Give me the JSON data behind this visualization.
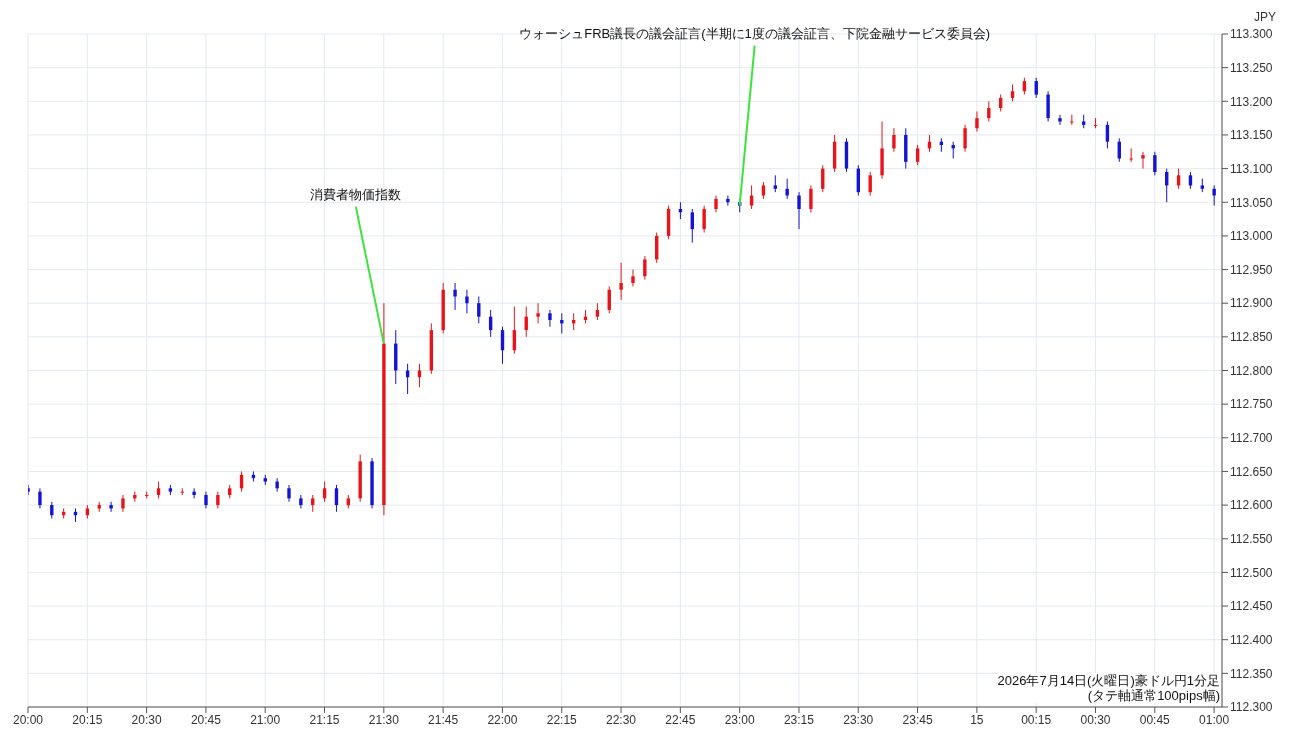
{
  "chart_data": {
    "type": "candlestick",
    "ylabel": "JPY",
    "annotations": [
      {
        "text": "消費者物価指数",
        "x": "2026-07-14T21:30",
        "y": 112.84
      },
      {
        "text": "ウォーシュFRB議長の議会証言(半期に1度の議会証言、下院金融サービス委員会)",
        "x": "2026-07-14T23:00",
        "y": 113.045
      },
      "2026年7月14日(火曜日)豪ドル円1分足",
      "(タテ軸通常100pips幅)"
    ],
    "colors": [
      "#1414d2",
      "#1414d2",
      "#1414d2",
      "#e8141c",
      "#1414d2",
      "#e8141c",
      "#e8141c",
      "#1414d2",
      "#e8141c",
      "#e8141c",
      "#e8141c",
      "#e8141c",
      "#1414d2",
      "#e8141c",
      "#1414d2",
      "#1414d2",
      "#e8141c",
      "#e8141c",
      "#e8141c",
      "#1414d2",
      "#1414d2",
      "#1414d2",
      "#1414d2",
      "#1414d2",
      "#e8141c",
      "#e8141c",
      "#1414d2",
      "#e8141c",
      "#e8141c",
      "#1414d2",
      "#e8141c",
      "#1414d2",
      "#1414d2",
      "#e8141c",
      "#e8141c",
      "#e8141c",
      "#1414d2",
      "#1414d2",
      "#1414d2",
      "#1414d2",
      "#1414d2",
      "#e8141c",
      "#e8141c",
      "#e8141c",
      "#1414d2",
      "#1414d2",
      "#e8141c",
      "#e8141c",
      "#e8141c",
      "#e8141c",
      "#e8141c",
      "#e8141c",
      "#e8141c",
      "#e8141c",
      "#e8141c",
      "#1414d2",
      "#1414d2",
      "#e8141c",
      "#e8141c",
      "#1414d2",
      "#1414d2",
      "#e8141c",
      "#e8141c",
      "#1414d2",
      "#1414d2",
      "#1414d2",
      "#e8141c",
      "#e8141c",
      "#e8141c",
      "#1414d2",
      "#1414d2",
      "#e8141c",
      "#e8141c",
      "#e8141c",
      "#1414d2",
      "#e8141c",
      "#e8141c",
      "#1414d2",
      "#1414d2",
      "#e8141c",
      "#e8141c",
      "#e8141c",
      "#e8141c",
      "#e8141c",
      "#e8141c",
      "#1414d2",
      "#1414d2",
      "#1414d2",
      "#e8141c",
      "#1414d2",
      "#e8141c",
      "#1414d2",
      "#1414d2",
      "#e8141c",
      "#e8141c",
      "#1414d2",
      "#1414d2",
      "#e8141c",
      "#1414d2",
      "#1414d2",
      "#1414d2"
    ],
    "grid": true,
    "xlim": [
      "2026-07-14T20:00",
      "2026-07-15T01:02"
    ],
    "xticks": [
      {
        "value": "2026-07-14T20:00",
        "label": "20:00"
      },
      {
        "value": "2026-07-14T20:15",
        "label": "20:15"
      },
      {
        "value": "2026-07-14T20:30",
        "label": "20:30"
      },
      {
        "value": "2026-07-14T20:45",
        "label": "20:45"
      },
      {
        "value": "2026-07-14T21:00",
        "label": "21:00"
      },
      {
        "value": "2026-07-14T21:15",
        "label": "21:15"
      },
      {
        "value": "2026-07-14T21:30",
        "label": "21:30"
      },
      {
        "value": "2026-07-14T21:45",
        "label": "21:45"
      },
      {
        "value": "2026-07-14T22:00",
        "label": "22:00"
      },
      {
        "value": "2026-07-14T22:15",
        "label": "22:15"
      },
      {
        "value": "2026-07-14T22:30",
        "label": "22:30"
      },
      {
        "value": "2026-07-14T22:45",
        "label": "22:45"
      },
      {
        "value": "2026-07-14T23:00",
        "label": "23:00"
      },
      {
        "value": "2026-07-14T23:15",
        "label": "23:15"
      },
      {
        "value": "2026-07-14T23:30",
        "label": "23:30"
      },
      {
        "value": "2026-07-14T23:45",
        "label": "23:45"
      },
      {
        "value": "2026-07-15T00:00",
        "label": "15"
      },
      {
        "value": "2026-07-15T00:15",
        "label": "00:15"
      },
      {
        "value": "2026-07-15T00:30",
        "label": "00:30"
      },
      {
        "value": "2026-07-15T00:45",
        "label": "00:45"
      },
      {
        "value": "2026-07-15T01:00",
        "label": "01:00"
      }
    ],
    "ylim": [
      112.3,
      113.3
    ],
    "yticks": [
      {
        "value": 112.3,
        "label": "112.300"
      },
      {
        "value": 112.35,
        "label": "112.350"
      },
      {
        "value": 112.4,
        "label": "112.400"
      },
      {
        "value": 112.45,
        "label": "112.450"
      },
      {
        "value": 112.5,
        "label": "112.500"
      },
      {
        "value": 112.55,
        "label": "112.550"
      },
      {
        "value": 112.6,
        "label": "112.600"
      },
      {
        "value": 112.65,
        "label": "112.650"
      },
      {
        "value": 112.7,
        "label": "112.700"
      },
      {
        "value": 112.75,
        "label": "112.750"
      },
      {
        "value": 112.8,
        "label": "112.800"
      },
      {
        "value": 112.85,
        "label": "112.850"
      },
      {
        "value": 112.9,
        "label": "112.900"
      },
      {
        "value": 112.95,
        "label": "112.950"
      },
      {
        "value": 113,
        "label": "113.000"
      },
      {
        "value": 113.05,
        "label": "113.050"
      },
      {
        "value": 113.1,
        "label": "113.100"
      },
      {
        "value": 113.15,
        "label": "113.150"
      },
      {
        "value": 113.2,
        "label": "113.200"
      },
      {
        "value": 113.25,
        "label": "113.250"
      },
      {
        "value": 113.3,
        "label": "113.300"
      }
    ],
    "x": [
      "2026-07-14T20:00",
      "2026-07-14T20:03",
      "2026-07-14T20:06",
      "2026-07-14T20:09",
      "2026-07-14T20:12",
      "2026-07-14T20:15",
      "2026-07-14T20:18",
      "2026-07-14T20:21",
      "2026-07-14T20:24",
      "2026-07-14T20:27",
      "2026-07-14T20:30",
      "2026-07-14T20:33",
      "2026-07-14T20:36",
      "2026-07-14T20:39",
      "2026-07-14T20:42",
      "2026-07-14T20:45",
      "2026-07-14T20:48",
      "2026-07-14T20:51",
      "2026-07-14T20:54",
      "2026-07-14T20:57",
      "2026-07-14T21:00",
      "2026-07-14T21:03",
      "2026-07-14T21:06",
      "2026-07-14T21:09",
      "2026-07-14T21:12",
      "2026-07-14T21:15",
      "2026-07-14T21:18",
      "2026-07-14T21:21",
      "2026-07-14T21:24",
      "2026-07-14T21:27",
      "2026-07-14T21:30",
      "2026-07-14T21:33",
      "2026-07-14T21:36",
      "2026-07-14T21:39",
      "2026-07-14T21:42",
      "2026-07-14T21:45",
      "2026-07-14T21:48",
      "2026-07-14T21:51",
      "2026-07-14T21:54",
      "2026-07-14T21:57",
      "2026-07-14T22:00",
      "2026-07-14T22:03",
      "2026-07-14T22:06",
      "2026-07-14T22:09",
      "2026-07-14T22:12",
      "2026-07-14T22:15",
      "2026-07-14T22:18",
      "2026-07-14T22:21",
      "2026-07-14T22:24",
      "2026-07-14T22:27",
      "2026-07-14T22:30",
      "2026-07-14T22:33",
      "2026-07-14T22:36",
      "2026-07-14T22:39",
      "2026-07-14T22:42",
      "2026-07-14T22:45",
      "2026-07-14T22:48",
      "2026-07-14T22:51",
      "2026-07-14T22:54",
      "2026-07-14T22:57",
      "2026-07-14T23:00",
      "2026-07-14T23:03",
      "2026-07-14T23:06",
      "2026-07-14T23:09",
      "2026-07-14T23:12",
      "2026-07-14T23:15",
      "2026-07-14T23:18",
      "2026-07-14T23:21",
      "2026-07-14T23:24",
      "2026-07-14T23:27",
      "2026-07-14T23:30",
      "2026-07-14T23:33",
      "2026-07-14T23:36",
      "2026-07-14T23:39",
      "2026-07-14T23:42",
      "2026-07-14T23:45",
      "2026-07-14T23:48",
      "2026-07-14T23:51",
      "2026-07-14T23:54",
      "2026-07-14T23:57",
      "2026-07-15T00:00",
      "2026-07-15T00:03",
      "2026-07-15T00:06",
      "2026-07-15T00:09",
      "2026-07-15T00:12",
      "2026-07-15T00:15",
      "2026-07-15T00:18",
      "2026-07-15T00:21",
      "2026-07-15T00:24",
      "2026-07-15T00:27",
      "2026-07-15T00:30",
      "2026-07-15T00:33",
      "2026-07-15T00:36",
      "2026-07-15T00:39",
      "2026-07-15T00:42",
      "2026-07-15T00:45",
      "2026-07-15T00:48",
      "2026-07-15T00:51",
      "2026-07-15T00:54",
      "2026-07-15T00:57",
      "2026-07-15T01:00"
    ],
    "ohlc": [
      [
        112.625,
        112.63,
        112.615,
        112.62
      ],
      [
        112.62,
        112.625,
        112.595,
        112.6
      ],
      [
        112.6,
        112.605,
        112.58,
        112.585
      ],
      [
        112.585,
        112.595,
        112.58,
        112.59
      ],
      [
        112.59,
        112.595,
        112.575,
        112.585
      ],
      [
        112.585,
        112.6,
        112.58,
        112.595
      ],
      [
        112.595,
        112.605,
        112.59,
        112.6
      ],
      [
        112.6,
        112.605,
        112.59,
        112.595
      ],
      [
        112.595,
        112.615,
        112.59,
        112.61
      ],
      [
        112.61,
        112.62,
        112.605,
        112.615
      ],
      [
        112.615,
        112.62,
        112.61,
        112.615
      ],
      [
        112.615,
        112.635,
        112.61,
        112.625
      ],
      [
        112.625,
        112.63,
        112.615,
        112.62
      ],
      [
        112.62,
        112.625,
        112.615,
        112.62
      ],
      [
        112.62,
        112.625,
        112.61,
        112.615
      ],
      [
        112.615,
        112.62,
        112.595,
        112.6
      ],
      [
        112.6,
        112.62,
        112.595,
        112.615
      ],
      [
        112.615,
        112.63,
        112.61,
        112.625
      ],
      [
        112.625,
        112.65,
        112.62,
        112.645
      ],
      [
        112.645,
        112.65,
        112.635,
        112.64
      ],
      [
        112.64,
        112.645,
        112.63,
        112.635
      ],
      [
        112.635,
        112.64,
        112.62,
        112.625
      ],
      [
        112.625,
        112.63,
        112.605,
        112.61
      ],
      [
        112.61,
        112.615,
        112.595,
        112.6
      ],
      [
        112.6,
        112.615,
        112.59,
        112.61
      ],
      [
        112.61,
        112.635,
        112.605,
        112.625
      ],
      [
        112.625,
        112.63,
        112.59,
        112.6
      ],
      [
        112.6,
        112.615,
        112.595,
        112.61
      ],
      [
        112.61,
        112.675,
        112.605,
        112.665
      ],
      [
        112.665,
        112.67,
        112.595,
        112.6
      ],
      [
        112.6,
        112.9,
        112.585,
        112.84
      ],
      [
        112.84,
        112.86,
        112.78,
        112.8
      ],
      [
        112.8,
        112.81,
        112.765,
        112.79
      ],
      [
        112.79,
        112.81,
        112.775,
        112.8
      ],
      [
        112.8,
        112.87,
        112.795,
        112.86
      ],
      [
        112.86,
        112.93,
        112.855,
        112.92
      ],
      [
        112.92,
        112.93,
        112.89,
        112.91
      ],
      [
        112.91,
        112.92,
        112.885,
        112.9
      ],
      [
        112.9,
        112.91,
        112.87,
        112.88
      ],
      [
        112.88,
        112.89,
        112.85,
        112.86
      ],
      [
        112.86,
        112.865,
        112.81,
        112.83
      ],
      [
        112.83,
        112.895,
        112.825,
        112.86
      ],
      [
        112.86,
        112.895,
        112.85,
        112.88
      ],
      [
        112.88,
        112.9,
        112.87,
        112.885
      ],
      [
        112.885,
        112.89,
        112.865,
        112.875
      ],
      [
        112.875,
        112.885,
        112.855,
        112.87
      ],
      [
        112.87,
        112.885,
        112.86,
        112.875
      ],
      [
        112.875,
        112.89,
        112.87,
        112.88
      ],
      [
        112.88,
        112.9,
        112.875,
        112.89
      ],
      [
        112.89,
        112.925,
        112.885,
        112.92
      ],
      [
        112.92,
        112.96,
        112.905,
        112.93
      ],
      [
        112.93,
        112.95,
        112.925,
        112.94
      ],
      [
        112.94,
        112.97,
        112.935,
        112.965
      ],
      [
        112.965,
        113.005,
        112.96,
        113.0
      ],
      [
        113.0,
        113.045,
        112.995,
        113.04
      ],
      [
        113.04,
        113.05,
        113.025,
        113.035
      ],
      [
        113.035,
        113.04,
        112.99,
        113.01
      ],
      [
        113.01,
        113.045,
        113.005,
        113.04
      ],
      [
        113.04,
        113.06,
        113.035,
        113.055
      ],
      [
        113.055,
        113.06,
        113.045,
        113.05
      ],
      [
        113.05,
        113.055,
        113.035,
        113.045
      ],
      [
        113.045,
        113.075,
        113.04,
        113.06
      ],
      [
        113.06,
        113.08,
        113.055,
        113.075
      ],
      [
        113.075,
        113.09,
        113.065,
        113.07
      ],
      [
        113.07,
        113.085,
        113.055,
        113.06
      ],
      [
        113.06,
        113.065,
        113.01,
        113.04
      ],
      [
        113.04,
        113.075,
        113.035,
        113.07
      ],
      [
        113.07,
        113.105,
        113.065,
        113.1
      ],
      [
        113.1,
        113.15,
        113.095,
        113.14
      ],
      [
        113.14,
        113.145,
        113.095,
        113.1
      ],
      [
        113.1,
        113.105,
        113.06,
        113.065
      ],
      [
        113.065,
        113.095,
        113.06,
        113.09
      ],
      [
        113.09,
        113.17,
        113.085,
        113.13
      ],
      [
        113.13,
        113.16,
        113.125,
        113.15
      ],
      [
        113.15,
        113.16,
        113.1,
        113.11
      ],
      [
        113.11,
        113.135,
        113.105,
        113.13
      ],
      [
        113.13,
        113.15,
        113.125,
        113.14
      ],
      [
        113.14,
        113.145,
        113.125,
        113.135
      ],
      [
        113.135,
        113.14,
        113.115,
        113.13
      ],
      [
        113.13,
        113.165,
        113.125,
        113.16
      ],
      [
        113.16,
        113.185,
        113.155,
        113.175
      ],
      [
        113.175,
        113.2,
        113.17,
        113.19
      ],
      [
        113.19,
        113.21,
        113.185,
        113.205
      ],
      [
        113.205,
        113.225,
        113.2,
        113.215
      ],
      [
        113.215,
        113.235,
        113.21,
        113.23
      ],
      [
        113.23,
        113.235,
        113.205,
        113.21
      ],
      [
        113.21,
        113.215,
        113.17,
        113.175
      ],
      [
        113.175,
        113.18,
        113.165,
        113.17
      ],
      [
        113.17,
        113.18,
        113.165,
        113.17
      ],
      [
        113.17,
        113.18,
        113.16,
        113.165
      ],
      [
        113.165,
        113.175,
        113.16,
        113.165
      ],
      [
        113.165,
        113.17,
        113.13,
        113.14
      ],
      [
        113.14,
        113.145,
        113.11,
        113.115
      ],
      [
        113.115,
        113.13,
        113.11,
        113.115
      ],
      [
        113.115,
        113.125,
        113.1,
        113.12
      ],
      [
        113.12,
        113.125,
        113.09,
        113.095
      ],
      [
        113.095,
        113.1,
        113.05,
        113.075
      ],
      [
        113.075,
        113.1,
        113.07,
        113.09
      ],
      [
        113.09,
        113.095,
        113.07,
        113.075
      ],
      [
        113.075,
        113.085,
        113.065,
        113.07
      ],
      [
        113.07,
        113.075,
        113.045,
        113.06
      ]
    ]
  }
}
